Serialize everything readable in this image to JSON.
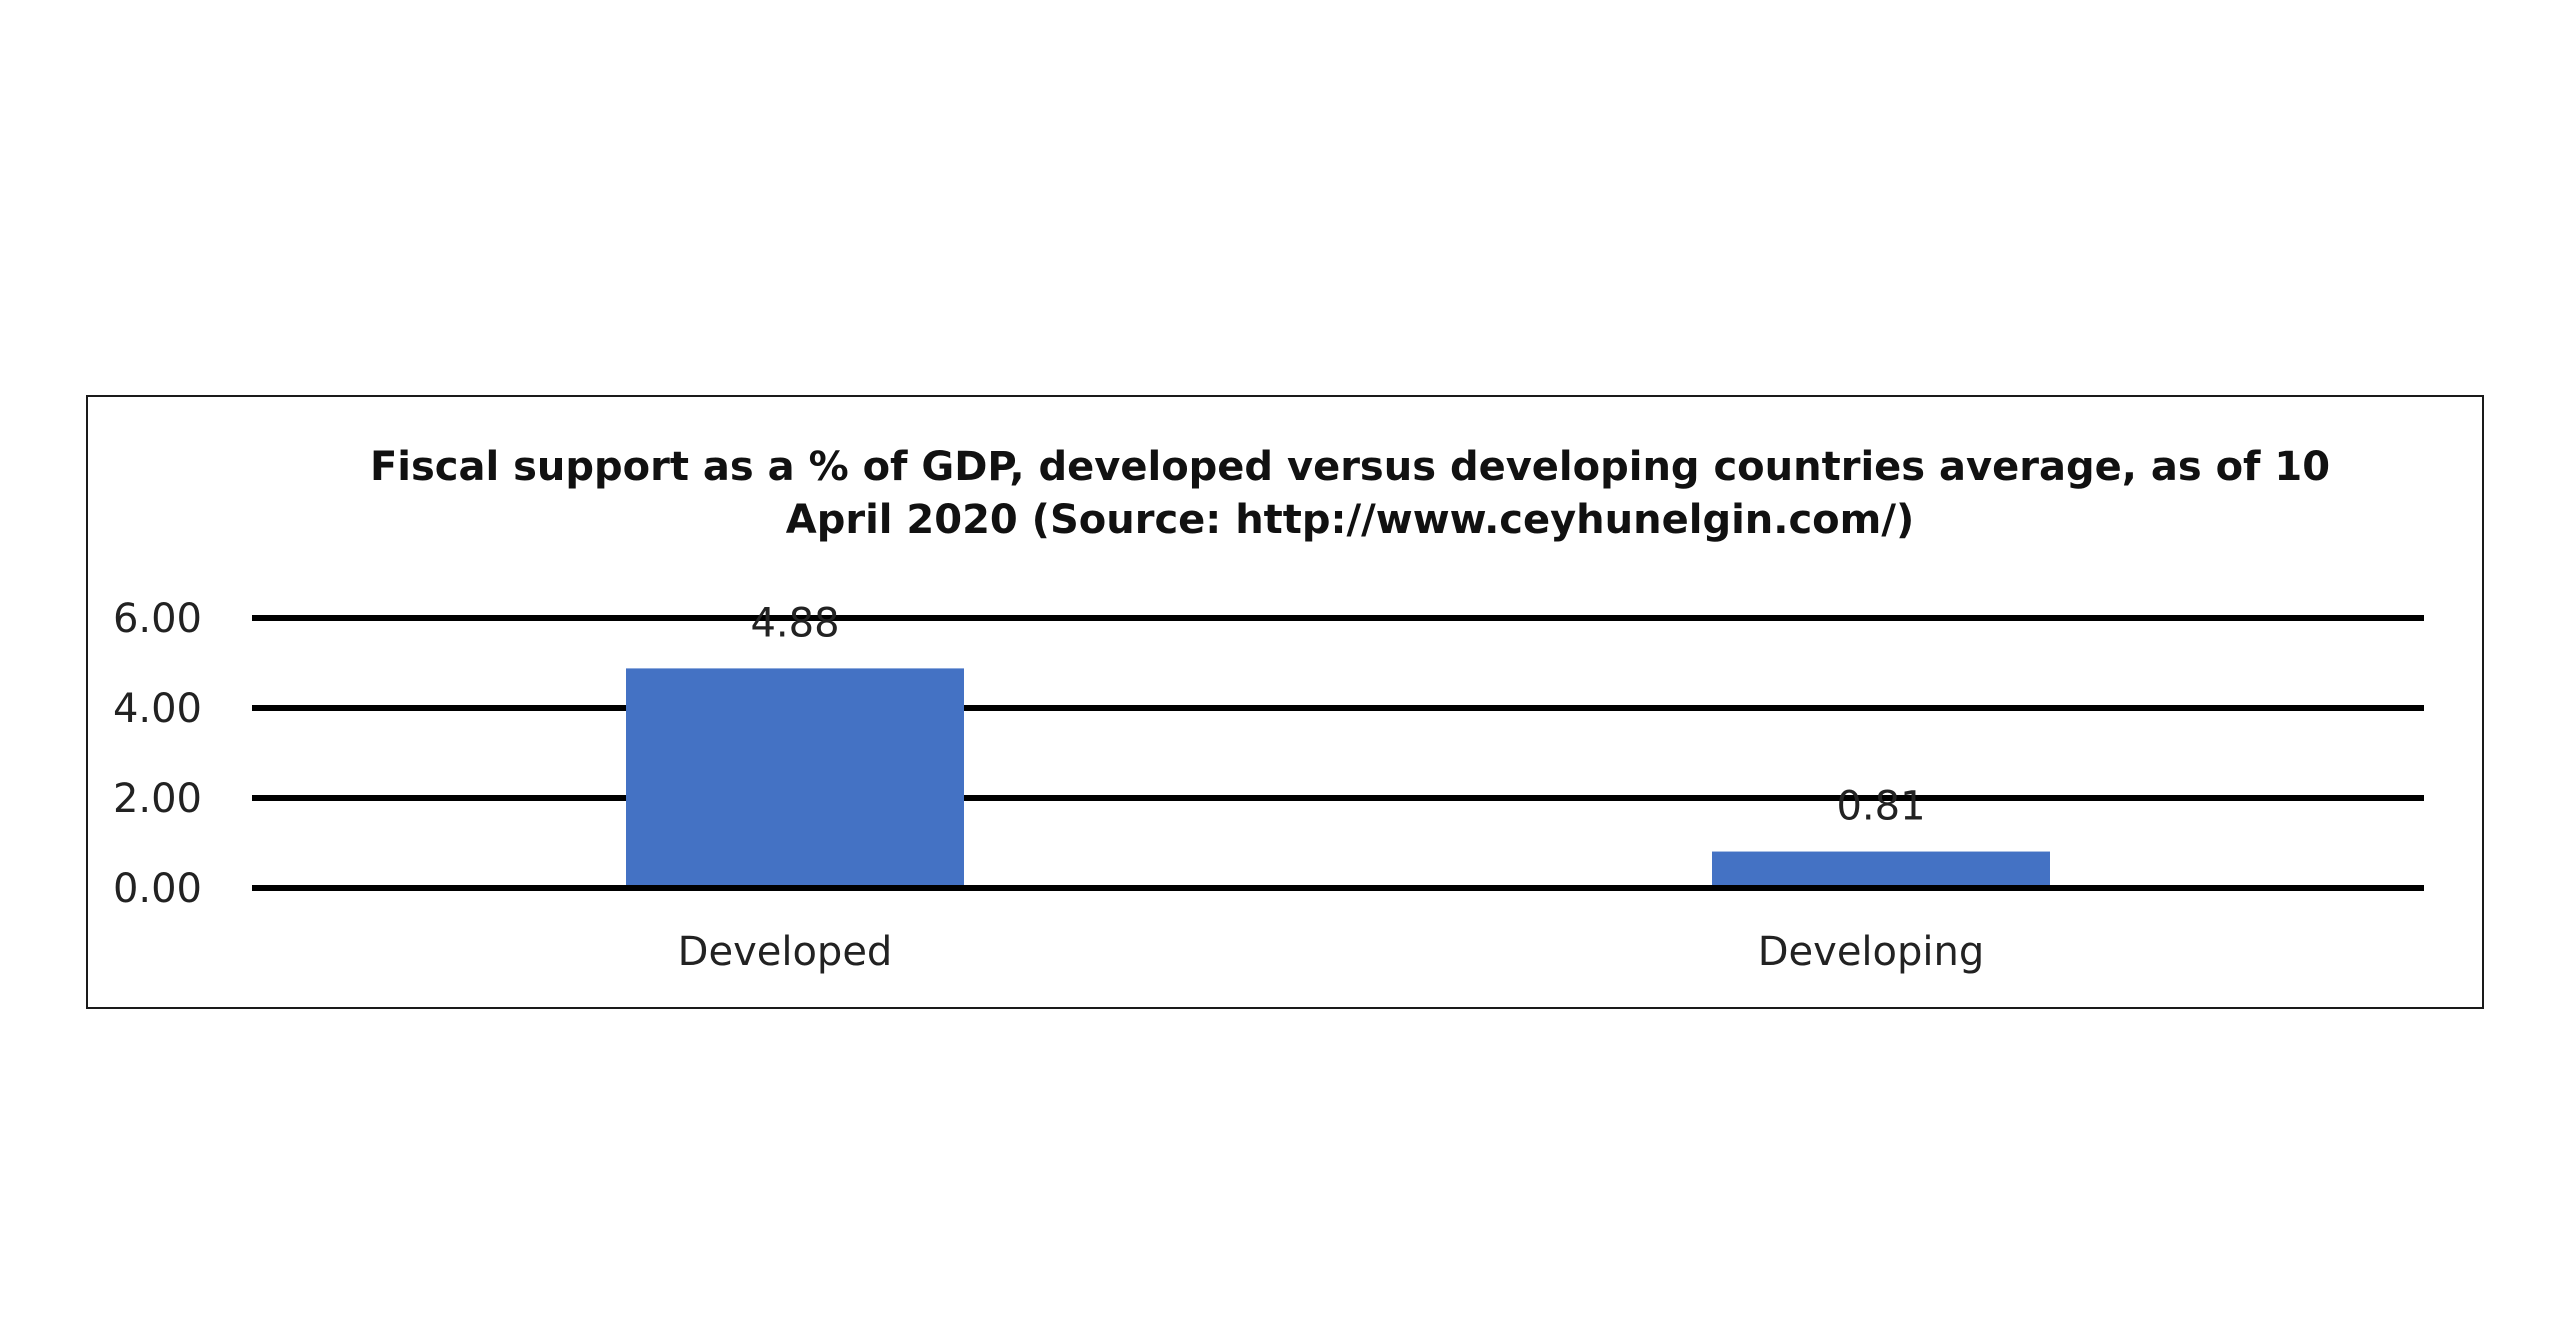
{
  "chart_data": {
    "type": "bar",
    "title_lines": [
      "Fiscal support as a % of GDP, developed versus developing countries average, as of 10",
      "April 2020 (Source: http://www.ceyhunelgin.com/)"
    ],
    "categories": [
      "Developed",
      "Developing"
    ],
    "values": [
      4.88,
      0.81
    ],
    "value_labels": [
      "4.88",
      "0.81"
    ],
    "y_ticks": [
      "0.00",
      "2.00",
      "4.00",
      "6.00"
    ],
    "y_tick_values": [
      0,
      2,
      4,
      6
    ],
    "ylim": [
      0,
      6
    ],
    "grid": true,
    "legend": "none",
    "colors": {
      "bar": "#4472C4",
      "grid": "#000000",
      "frame": "#1a1a1a"
    }
  }
}
